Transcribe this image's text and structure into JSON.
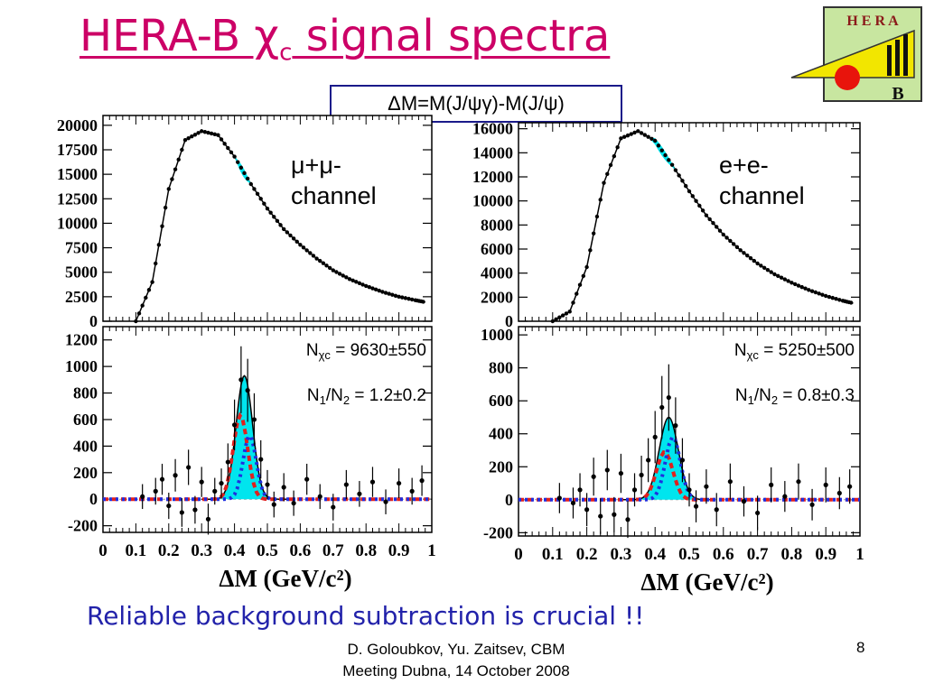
{
  "slide": {
    "title_main": "HERA-B χ",
    "title_sub": "c",
    "title_tail": " signal spectra",
    "formula": "ΔM=M(J/ψγ)-M(J/ψ)",
    "subtitle": "Reliable background subtraction is crucial !!",
    "footer_line1": "D. Goloubkov, Yu. Zaitsev, CBM",
    "footer_line2": "Meeting Dubna, 14 October 2008",
    "page_number": "8",
    "logo_text": "H E R A",
    "logo_letter": "B"
  },
  "colors": {
    "title": "#cc0066",
    "subtitle": "#2222aa",
    "signal_fill": "#00e5ee",
    "red_curve": "#e0201e",
    "blue_curve": "#1f2fe0"
  },
  "chart_data": [
    {
      "id": "mumu-top",
      "type": "scatter",
      "xlim": [
        0,
        1
      ],
      "ylim": [
        0,
        21000
      ],
      "yticks": [
        0,
        2500,
        5000,
        7500,
        10000,
        12500,
        15000,
        17500,
        20000
      ],
      "annotation_line1": "μ+μ-",
      "annotation_line2": "channel",
      "x": [
        0.1,
        0.15,
        0.2,
        0.25,
        0.3,
        0.35,
        0.4,
        0.45,
        0.5,
        0.55,
        0.6,
        0.65,
        0.7,
        0.75,
        0.8,
        0.85,
        0.9,
        0.95,
        0.98
      ],
      "y": [
        0,
        4000,
        13500,
        18500,
        19400,
        19000,
        16800,
        14000,
        11500,
        9400,
        7800,
        6400,
        5200,
        4300,
        3600,
        3000,
        2500,
        2150,
        1950
      ]
    },
    {
      "id": "mumu-bottom",
      "type": "scatter",
      "xlim": [
        0,
        1
      ],
      "ylim": [
        -250,
        1300
      ],
      "yticks": [
        -200,
        0,
        200,
        400,
        600,
        800,
        1000,
        1200
      ],
      "xticks": [
        0,
        0.1,
        0.2,
        0.3,
        0.4,
        0.5,
        0.6,
        0.7,
        0.8,
        0.9,
        1
      ],
      "xtick_labels": [
        "0",
        "0.1",
        "0.2",
        "0.3",
        "0.4",
        "0.5",
        "0.6",
        "0.7",
        "0.8",
        "0.9",
        "1"
      ],
      "xlabel": "ΔM (GeV/c²)",
      "n_label": "N",
      "n_sub": "χc",
      "n_value": " = 9630±550",
      "ratio_n1": "N",
      "ratio_sub1": "1",
      "ratio_mid": "/N",
      "ratio_sub2": "2",
      "ratio_value": " = 1.2±0.2",
      "signal": {
        "total_mu": 0.43,
        "total_sigma": 0.025,
        "total_amp": 930,
        "red_mu": 0.418,
        "red_sigma": 0.022,
        "red_amp": 630,
        "blue_mu": 0.446,
        "blue_sigma": 0.02,
        "blue_amp": 480
      },
      "x": [
        0.12,
        0.16,
        0.18,
        0.2,
        0.22,
        0.24,
        0.26,
        0.28,
        0.3,
        0.32,
        0.34,
        0.36,
        0.38,
        0.4,
        0.42,
        0.44,
        0.46,
        0.48,
        0.5,
        0.52,
        0.55,
        0.58,
        0.62,
        0.66,
        0.7,
        0.74,
        0.78,
        0.82,
        0.86,
        0.9,
        0.94,
        0.97
      ],
      "y": [
        20,
        60,
        150,
        -50,
        180,
        -100,
        240,
        -80,
        130,
        -150,
        60,
        120,
        280,
        560,
        900,
        820,
        600,
        300,
        110,
        -40,
        90,
        -30,
        150,
        20,
        -60,
        110,
        40,
        130,
        -20,
        120,
        60,
        140
      ]
    },
    {
      "id": "ee-top",
      "type": "scatter",
      "xlim": [
        0,
        1
      ],
      "ylim": [
        0,
        16500
      ],
      "yticks": [
        0,
        2000,
        4000,
        6000,
        8000,
        10000,
        12000,
        14000,
        16000
      ],
      "annotation_line1": "e+e-",
      "annotation_line2": "channel",
      "x": [
        0.1,
        0.15,
        0.2,
        0.25,
        0.3,
        0.35,
        0.4,
        0.45,
        0.5,
        0.55,
        0.6,
        0.65,
        0.7,
        0.75,
        0.8,
        0.85,
        0.9,
        0.95,
        0.98
      ],
      "y": [
        0,
        800,
        4500,
        11500,
        15200,
        15800,
        15000,
        13000,
        10800,
        8800,
        7200,
        5900,
        4800,
        3900,
        3200,
        2600,
        2100,
        1700,
        1500
      ]
    },
    {
      "id": "ee-bottom",
      "type": "scatter",
      "xlim": [
        0,
        1
      ],
      "ylim": [
        -220,
        1050
      ],
      "yticks": [
        -200,
        0,
        200,
        400,
        600,
        800,
        1000
      ],
      "xticks": [
        0,
        0.1,
        0.2,
        0.3,
        0.4,
        0.5,
        0.6,
        0.7,
        0.8,
        0.9,
        1
      ],
      "xtick_labels": [
        "0",
        "0.1",
        "0.2",
        "0.3",
        "0.4",
        "0.5",
        "0.6",
        "0.7",
        "0.8",
        "0.9",
        "1"
      ],
      "xlabel": "ΔM (GeV/c²)",
      "n_label": "N",
      "n_sub": "χc",
      "n_value": " = 5250±500",
      "ratio_n1": "N",
      "ratio_sub1": "1",
      "ratio_mid": "/N",
      "ratio_sub2": "2",
      "ratio_value": " = 0.8±0.3",
      "signal": {
        "total_mu": 0.44,
        "total_sigma": 0.028,
        "total_amp": 500,
        "red_mu": 0.428,
        "red_sigma": 0.024,
        "red_amp": 290,
        "blue_mu": 0.452,
        "blue_sigma": 0.022,
        "blue_amp": 380
      },
      "x": [
        0.12,
        0.16,
        0.18,
        0.2,
        0.22,
        0.24,
        0.26,
        0.28,
        0.3,
        0.32,
        0.34,
        0.36,
        0.38,
        0.4,
        0.42,
        0.44,
        0.46,
        0.48,
        0.5,
        0.52,
        0.55,
        0.58,
        0.62,
        0.66,
        0.7,
        0.74,
        0.78,
        0.82,
        0.86,
        0.9,
        0.94,
        0.97
      ],
      "y": [
        10,
        -20,
        60,
        -60,
        140,
        -100,
        180,
        -90,
        160,
        -120,
        60,
        150,
        240,
        380,
        560,
        620,
        450,
        240,
        60,
        -40,
        80,
        -60,
        110,
        -10,
        -80,
        90,
        20,
        110,
        -30,
        90,
        40,
        80
      ]
    }
  ]
}
